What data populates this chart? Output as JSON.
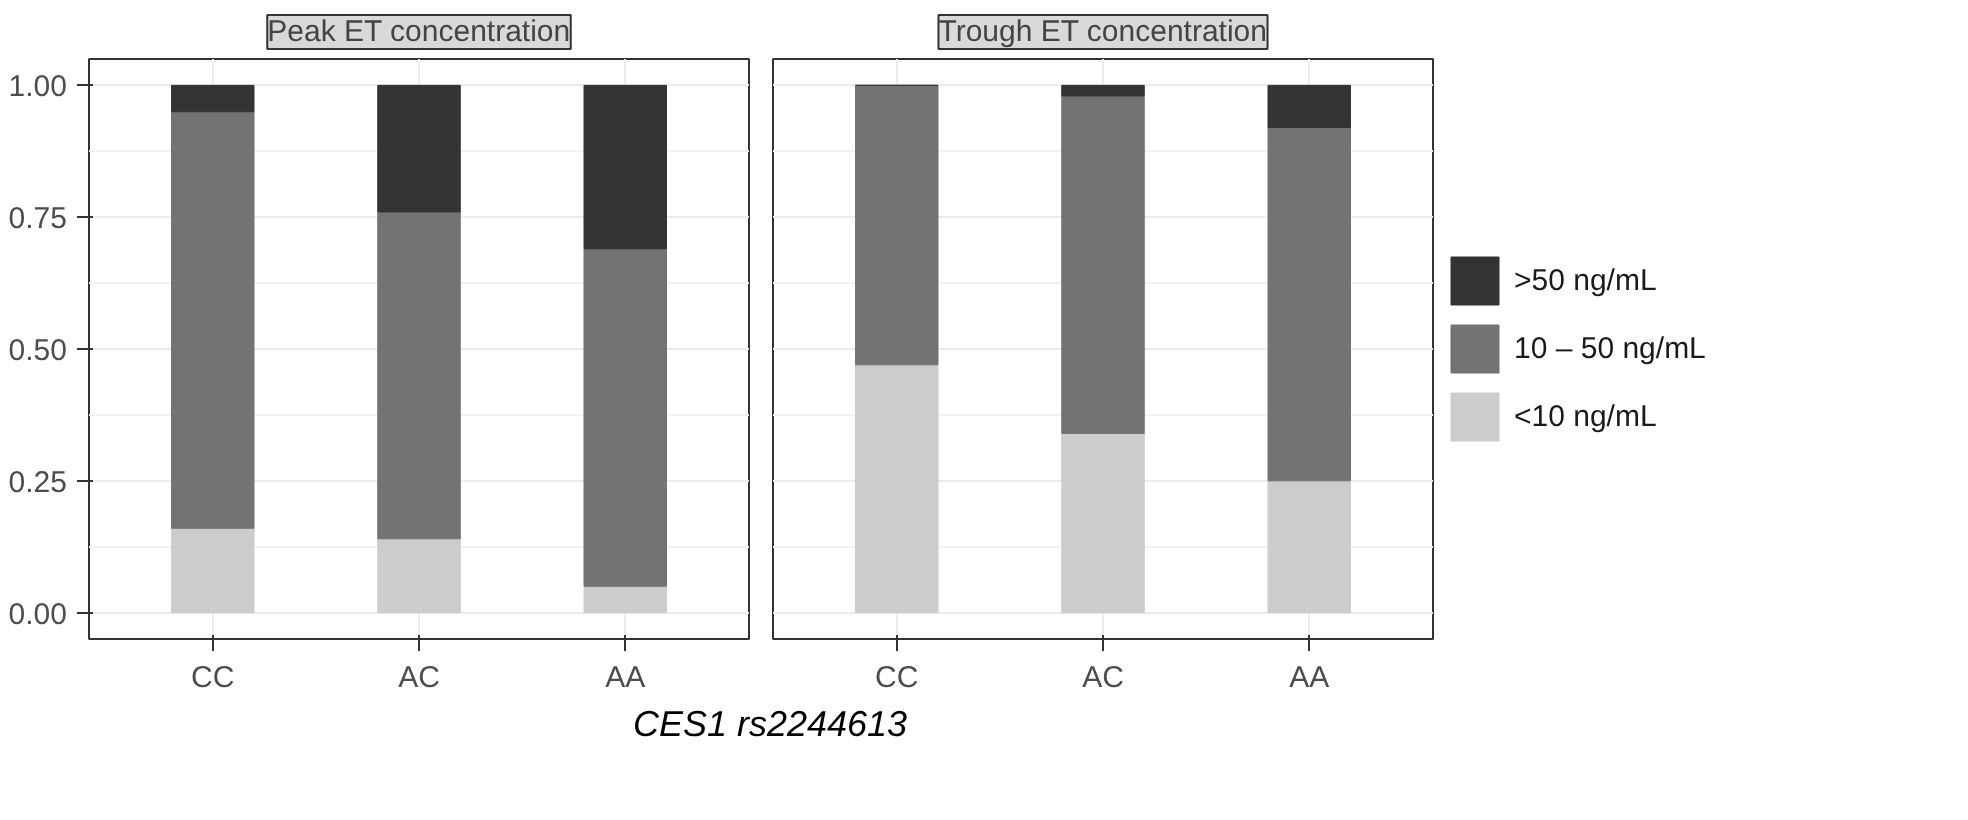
{
  "chart_data": [
    {
      "type": "bar",
      "title": "Peak ET concentration",
      "xlabel": "CES1 rs2244613",
      "categories": [
        "CC",
        "AC",
        "AA"
      ],
      "stacked": true,
      "series": [
        {
          "color": "#cccccc",
          "values": [
            0.16,
            0.14,
            0.05
          ]
        },
        {
          "color": "#737373",
          "values": [
            0.79,
            0.62,
            0.64
          ]
        },
        {
          "color": "#333333",
          "values": [
            0.05,
            0.24,
            0.31
          ]
        }
      ],
      "ylim": [
        -0.05,
        1.05
      ],
      "yticks": [
        {
          "value": 0,
          "label": "0.00"
        },
        {
          "value": 0.25,
          "label": "0.25"
        },
        {
          "value": 0.5,
          "label": "0.50"
        },
        {
          "value": 0.75,
          "label": "0.75"
        },
        {
          "value": 1,
          "label": "1.00"
        }
      ],
      "grid": true
    },
    {
      "type": "bar",
      "title": "Trough ET concentration",
      "categories": [
        "CC",
        "AC",
        "AA"
      ],
      "stacked": true,
      "series": [
        {
          "name": "<10 ng/mL",
          "color": "#cccccc",
          "values": [
            0.47,
            0.34,
            0.25
          ]
        },
        {
          "name": "10 – 50 ng/mL",
          "color": "#737373",
          "values": [
            0.53,
            0.64,
            0.67
          ]
        },
        {
          "name": ">50 ng/mL",
          "color": "#333333",
          "values": [
            0,
            0.02,
            0.08
          ]
        }
      ],
      "ylim": [
        -0.05,
        1.05
      ],
      "yticks": [
        {
          "value": 0,
          "label": null
        },
        {
          "value": 0.25,
          "label": null
        },
        {
          "value": 0.5,
          "label": null
        },
        {
          "value": 0.75,
          "label": null
        },
        {
          "value": 1,
          "label": null
        }
      ],
      "grid": true,
      "tick_labels": "x",
      "legend": "right"
    }
  ]
}
